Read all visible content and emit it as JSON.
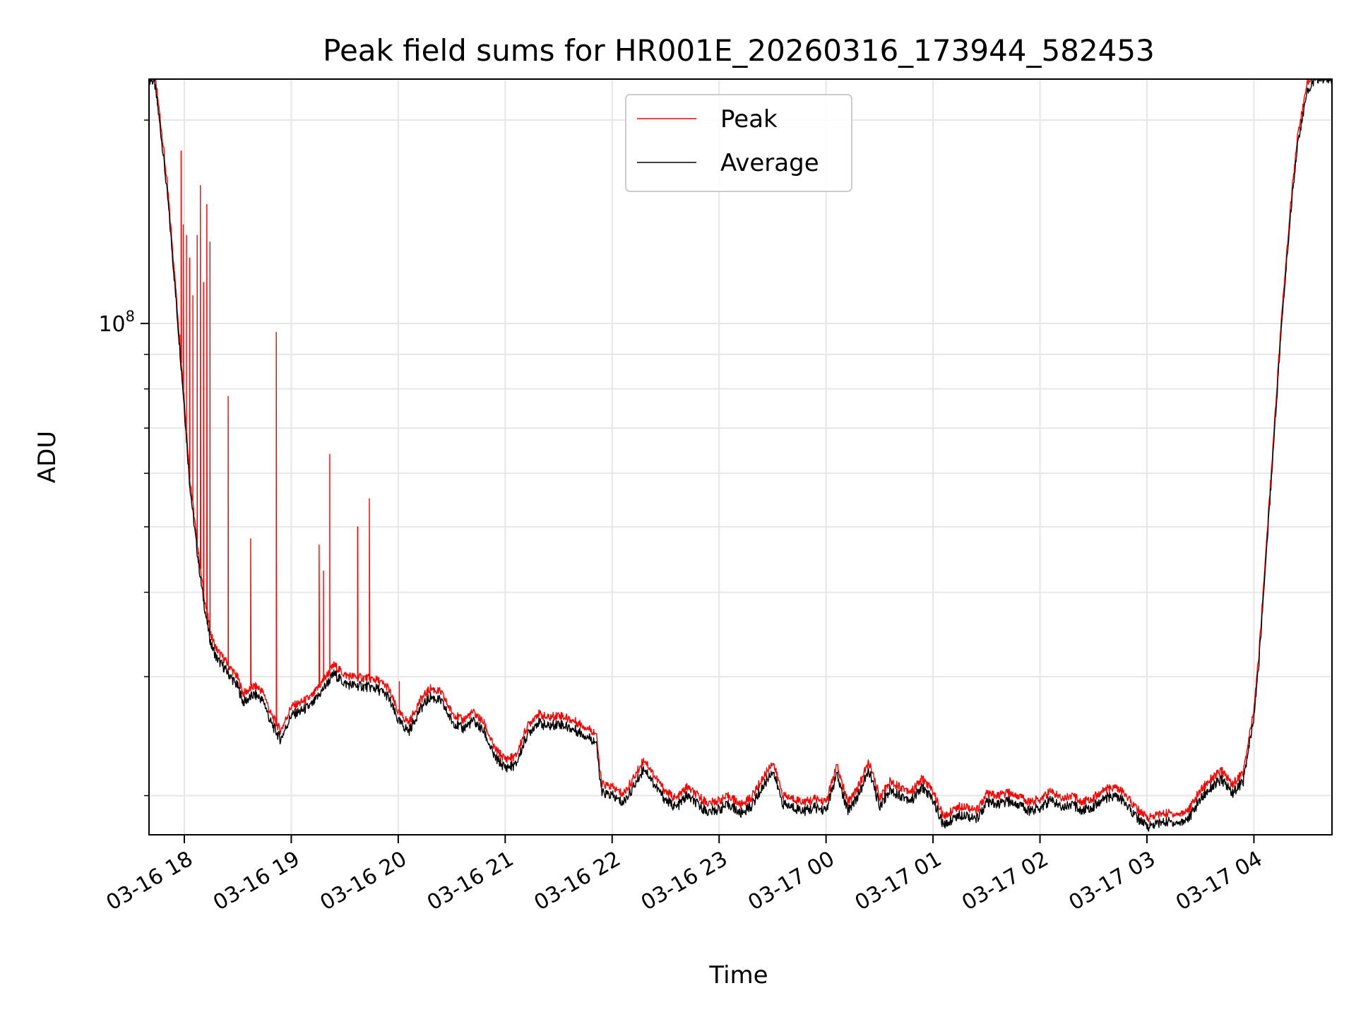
{
  "chart_data": {
    "type": "line",
    "title": "Peak field sums for HR001E_20260316_173944_582453",
    "xlabel": "Time",
    "ylabel": "ADU",
    "yscale": "log",
    "grid": true,
    "legend_position": "upper center",
    "x_ticks": [
      "03-16 18",
      "03-16 19",
      "03-16 20",
      "03-16 21",
      "03-16 22",
      "03-16 23",
      "03-17 00",
      "03-17 01",
      "03-17 02",
      "03-17 03",
      "03-17 04"
    ],
    "y_tick_major": {
      "base": "10",
      "exponent": "8",
      "value": 100000000
    },
    "x_unit": "hours since 03-16 18:00",
    "xlim": [
      -0.33,
      10.73
    ],
    "ylim": [
      17500000,
      230000000
    ],
    "y_minor_ticks": [
      20000000,
      30000000,
      40000000,
      50000000,
      60000000,
      70000000,
      80000000,
      90000000,
      200000000
    ],
    "series": [
      {
        "name": "Average",
        "color": "#000000",
        "x": [
          -0.33,
          -0.28,
          -0.25,
          -0.2,
          -0.15,
          -0.1,
          -0.05,
          0.0,
          0.05,
          0.1,
          0.15,
          0.2,
          0.25,
          0.3,
          0.4,
          0.5,
          0.55,
          0.6,
          0.65,
          0.7,
          0.75,
          0.8,
          0.85,
          0.9,
          1.0,
          1.1,
          1.2,
          1.3,
          1.4,
          1.5,
          1.6,
          1.7,
          1.8,
          1.9,
          2.0,
          2.1,
          2.2,
          2.3,
          2.4,
          2.5,
          2.6,
          2.7,
          2.8,
          2.9,
          3.0,
          3.1,
          3.2,
          3.3,
          3.4,
          3.5,
          3.6,
          3.7,
          3.8,
          3.85,
          3.9,
          4.0,
          4.1,
          4.2,
          4.3,
          4.4,
          4.5,
          4.6,
          4.7,
          4.8,
          4.9,
          5.0,
          5.1,
          5.2,
          5.3,
          5.4,
          5.5,
          5.6,
          5.7,
          5.8,
          5.9,
          6.0,
          6.1,
          6.2,
          6.3,
          6.4,
          6.5,
          6.6,
          6.7,
          6.8,
          6.9,
          7.0,
          7.1,
          7.2,
          7.3,
          7.4,
          7.5,
          7.6,
          7.7,
          7.8,
          7.9,
          8.0,
          8.1,
          8.2,
          8.3,
          8.4,
          8.5,
          8.6,
          8.7,
          8.8,
          8.9,
          9.0,
          9.1,
          9.2,
          9.3,
          9.4,
          9.5,
          9.6,
          9.7,
          9.8,
          9.9,
          10.0,
          10.05,
          10.1,
          10.15,
          10.2,
          10.25,
          10.3,
          10.35,
          10.4,
          10.45,
          10.5,
          10.55,
          10.6,
          10.65,
          10.73
        ],
        "values": [
          230000000,
          228000000,
          210000000,
          180000000,
          150000000,
          120000000,
          95000000,
          75000000,
          58000000,
          49000000,
          42000000,
          37000000,
          33500000,
          32000000,
          30500000,
          29000000,
          27500000,
          27800000,
          28200000,
          28000000,
          27400000,
          25800000,
          25000000,
          24200000,
          26300000,
          26700000,
          27300000,
          28800000,
          30300000,
          29300000,
          29100000,
          29000000,
          28800000,
          28100000,
          25800000,
          24900000,
          26800000,
          28000000,
          27600000,
          25800000,
          25100000,
          25800000,
          24900000,
          22800000,
          22000000,
          22200000,
          24500000,
          25700000,
          25300000,
          25600000,
          25200000,
          24800000,
          24300000,
          24000000,
          20200000,
          20000000,
          19500000,
          20600000,
          22000000,
          20700000,
          19700000,
          19200000,
          20000000,
          19400000,
          18900000,
          19100000,
          19400000,
          18800000,
          19300000,
          20500000,
          21800000,
          19400000,
          19200000,
          19000000,
          19200000,
          19000000,
          21500000,
          19000000,
          20000000,
          21800000,
          19300000,
          20400000,
          20000000,
          19700000,
          20600000,
          19700000,
          18000000,
          18600000,
          18800000,
          18400000,
          19500000,
          19400000,
          19600000,
          19400000,
          19000000,
          19200000,
          19700000,
          19300000,
          19400000,
          19000000,
          19300000,
          19800000,
          20000000,
          19500000,
          18600000,
          18000000,
          18200000,
          18300000,
          18200000,
          18600000,
          19800000,
          20600000,
          21100000,
          20200000,
          21000000,
          26000000,
          32000000,
          42000000,
          55000000,
          72000000,
          95000000,
          120000000,
          150000000,
          180000000,
          200000000,
          220000000,
          228000000,
          230000000,
          230000000,
          230000000
        ]
      },
      {
        "name": "Peak",
        "color": "#ff0000",
        "offset_factor": 1.03,
        "spikes": [
          {
            "x": -0.03,
            "peak": 180000000
          },
          {
            "x": -0.01,
            "peak": 140000000
          },
          {
            "x": 0.02,
            "peak": 135000000
          },
          {
            "x": 0.05,
            "peak": 125000000
          },
          {
            "x": 0.08,
            "peak": 110000000
          },
          {
            "x": 0.12,
            "peak": 135000000
          },
          {
            "x": 0.15,
            "peak": 160000000
          },
          {
            "x": 0.18,
            "peak": 115000000
          },
          {
            "x": 0.21,
            "peak": 150000000
          },
          {
            "x": 0.24,
            "peak": 132000000
          },
          {
            "x": 0.41,
            "peak": 78000000
          },
          {
            "x": 0.62,
            "peak": 48000000
          },
          {
            "x": 0.86,
            "peak": 97000000
          },
          {
            "x": 1.26,
            "peak": 47000000
          },
          {
            "x": 1.3,
            "peak": 43000000
          },
          {
            "x": 1.36,
            "peak": 64000000
          },
          {
            "x": 1.62,
            "peak": 50000000
          },
          {
            "x": 1.73,
            "peak": 55000000
          },
          {
            "x": 2.01,
            "peak": 29500000
          }
        ]
      }
    ]
  }
}
